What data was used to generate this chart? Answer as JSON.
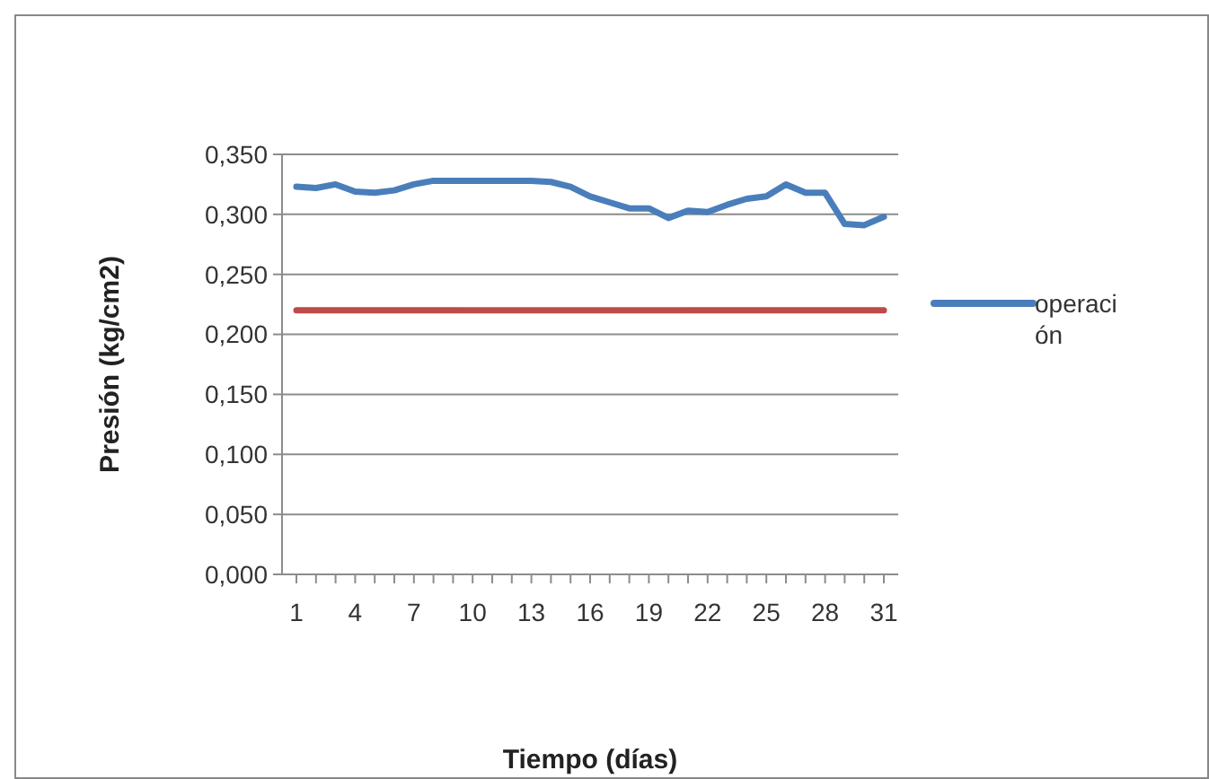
{
  "chart_data": {
    "type": "line",
    "xlabel": "Tiempo (días)",
    "ylabel": "Presión (kg/cm2)",
    "categories": [
      "1",
      null,
      null,
      "4",
      null,
      null,
      "7",
      null,
      null,
      "10",
      null,
      null,
      "13",
      null,
      null,
      "16",
      null,
      null,
      "19",
      null,
      null,
      "22",
      null,
      null,
      "25",
      null,
      null,
      "28",
      null,
      null,
      "31"
    ],
    "series": [
      {
        "name": "operación",
        "color": "#4a7ebb",
        "values": [
          0.323,
          0.322,
          0.325,
          0.319,
          0.318,
          0.32,
          0.325,
          0.328,
          0.328,
          0.328,
          0.328,
          0.328,
          0.328,
          0.327,
          0.323,
          0.315,
          0.31,
          0.305,
          0.305,
          0.297,
          0.303,
          0.302,
          0.308,
          0.313,
          0.315,
          0.325,
          0.318,
          0.318,
          0.292,
          0.291,
          0.298
        ]
      },
      {
        "color": "#be4b48",
        "values": [
          0.22,
          0.22,
          0.22,
          0.22,
          0.22,
          0.22,
          0.22,
          0.22,
          0.22,
          0.22,
          0.22,
          0.22,
          0.22,
          0.22,
          0.22,
          0.22,
          0.22,
          0.22,
          0.22,
          0.22,
          0.22,
          0.22,
          0.22,
          0.22,
          0.22,
          0.22,
          0.22,
          0.22,
          0.22,
          0.22,
          0.22
        ]
      }
    ],
    "ylim": [
      0,
      0.35
    ],
    "yticks": [
      {
        "value": 0,
        "label": "0,000"
      },
      {
        "value": 0.05,
        "label": "0,050"
      },
      {
        "value": 0.1,
        "label": "0,100"
      },
      {
        "value": 0.15,
        "label": "0,150"
      },
      {
        "value": 0.2,
        "label": "0,200"
      },
      {
        "value": 0.25,
        "label": "0,250"
      },
      {
        "value": 0.3,
        "label": "0,300"
      },
      {
        "value": 0.35,
        "label": "0,350"
      }
    ],
    "grid": "y",
    "legend": "right"
  }
}
